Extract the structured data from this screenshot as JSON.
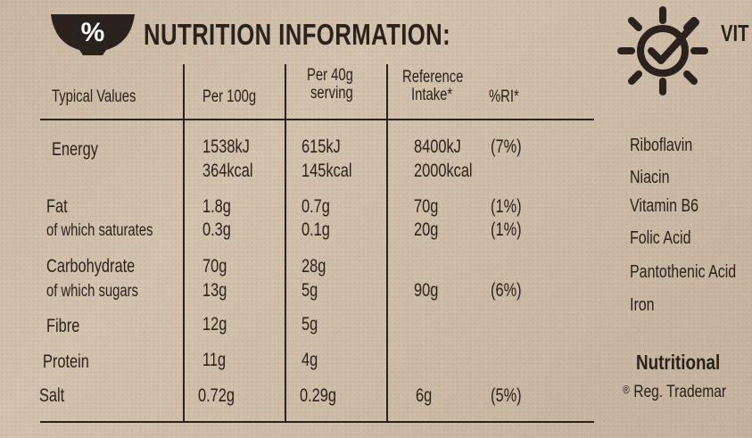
{
  "title": "NUTRITION INFORMATION:",
  "icons": {
    "badge": "percent-bowl-icon",
    "vitamins": "sun-check-icon"
  },
  "colors": {
    "ink": "#2a221d",
    "card": "#cdbba6"
  },
  "table": {
    "headers": {
      "typical": "Typical Values",
      "per100": "Per 100g",
      "per40": [
        "Per 40g",
        "serving"
      ],
      "ref": [
        "Reference",
        "Intake*"
      ],
      "ri": "%RI*"
    },
    "rows": {
      "energy": {
        "label": "Energy",
        "per100": [
          "1538kJ",
          "364kcal"
        ],
        "per40": [
          "615kJ",
          "145kcal"
        ],
        "ref": [
          "8400kJ",
          "2000kcal"
        ],
        "ri": "(7%)"
      },
      "fat": {
        "label": "Fat",
        "per100": "1.8g",
        "per40": "0.7g",
        "ref": "70g",
        "ri": "(1%)"
      },
      "saturates": {
        "label": "of which saturates",
        "per100": "0.3g",
        "per40": "0.1g",
        "ref": "20g",
        "ri": "(1%)"
      },
      "carbohydrate": {
        "label": "Carbohydrate",
        "per100": "70g",
        "per40": "28g"
      },
      "sugars": {
        "label": "of which sugars",
        "per100": "13g",
        "per40": "5g",
        "ref": "90g",
        "ri": "(6%)"
      },
      "fibre": {
        "label": "Fibre",
        "per100": "12g",
        "per40": "5g"
      },
      "protein": {
        "label": "Protein",
        "per100": "11g",
        "per40": "4g"
      },
      "salt": {
        "label": "Salt",
        "per100": "0.72g",
        "per40": "0.29g",
        "ref": "6g",
        "ri": "(5%)"
      }
    }
  },
  "vitamins": {
    "title": "VIT",
    "items": [
      "Riboflavin",
      "Niacin",
      "Vitamin B6",
      "Folic Acid",
      "Pantothenic Acid",
      "Iron"
    ],
    "footer": "Nutritional",
    "note_mark": "®",
    "note": "Reg. Trademar"
  }
}
